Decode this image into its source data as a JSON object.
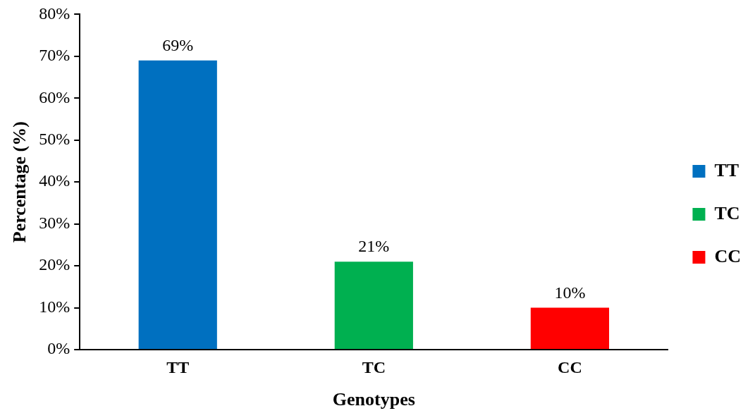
{
  "chart_data": {
    "type": "bar",
    "xlabel": "Genotypes",
    "ylabel": "Percentage (%)",
    "categories": [
      "TT",
      "TC",
      "CC"
    ],
    "series": [
      {
        "name": "TT",
        "color": "#0070c0",
        "values": [
          69,
          null,
          null
        ],
        "value_labels": [
          "69%",
          null,
          null
        ]
      },
      {
        "name": "TC",
        "color": "#00b050",
        "values": [
          null,
          21,
          null
        ],
        "value_labels": [
          null,
          "21%",
          null
        ]
      },
      {
        "name": "CC",
        "color": "#ff0000",
        "values": [
          null,
          null,
          10
        ],
        "value_labels": [
          null,
          null,
          "10%"
        ]
      }
    ],
    "stacked": true,
    "ylim": [
      0,
      80
    ],
    "yticks": [
      {
        "value": 0,
        "label": "0%"
      },
      {
        "value": 10,
        "label": "10%"
      },
      {
        "value": 20,
        "label": "20%"
      },
      {
        "value": 30,
        "label": "30%"
      },
      {
        "value": 40,
        "label": "40%"
      },
      {
        "value": 50,
        "label": "50%"
      },
      {
        "value": 60,
        "label": "60%"
      },
      {
        "value": 70,
        "label": "70%"
      },
      {
        "value": 80,
        "label": "80%"
      }
    ],
    "legend": "right"
  }
}
